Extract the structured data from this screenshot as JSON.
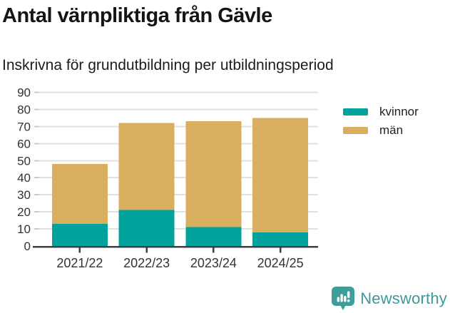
{
  "chart_data": {
    "type": "bar",
    "stacked": true,
    "title": "Antal värnpliktiga från Gävle",
    "subtitle": "Inskrivna för grundutbildning per utbildningsperiod",
    "categories": [
      "2021/22",
      "2022/23",
      "2023/24",
      "2024/25"
    ],
    "series": [
      {
        "name": "kvinnor",
        "color": "#00a29b",
        "values": [
          13,
          21,
          11,
          8
        ]
      },
      {
        "name": "män",
        "color": "#d9ae5f",
        "values": [
          35,
          51,
          62,
          67
        ]
      }
    ],
    "totals": [
      48,
      72,
      73,
      75
    ],
    "ylim": [
      0,
      90
    ],
    "yticks": [
      0,
      10,
      20,
      30,
      40,
      50,
      60,
      70,
      80,
      90
    ],
    "grid": "horizontal",
    "legend_position": "right",
    "axis_color": "#3f3f3f",
    "grid_color": "#e1e1e1",
    "minor_tick_color": "#cccccc",
    "tick_label_color": "#333333"
  },
  "footer": {
    "brand": "Newsworthy",
    "brand_color": "#3e989c",
    "icon_color": "#3f9e9a",
    "icon": "newsworthy-speech-bubble-bar-chart"
  }
}
